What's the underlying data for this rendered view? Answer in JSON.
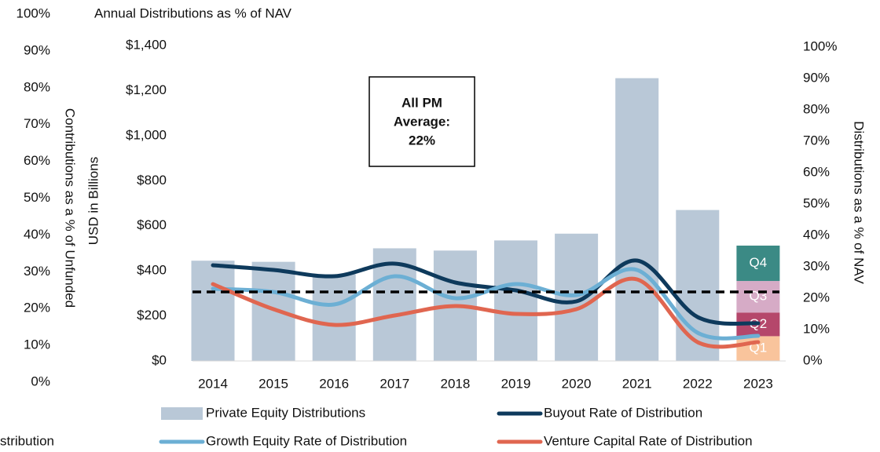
{
  "chart_data": {
    "type": "bar-line",
    "title": "Annual Distributions as % of NAV",
    "annotation": "stribution",
    "ylabel": "USD in Billions",
    "y2label": "Distributions as a % of NAV",
    "y3label": "Contributions as a % of Unfunded",
    "categories": [
      "2014",
      "2015",
      "2016",
      "2017",
      "2018",
      "2019",
      "2020",
      "2021",
      "2022",
      "2023"
    ],
    "ylim": [
      0,
      1400
    ],
    "yticks": [
      {
        "value": 0,
        "label": "$0"
      },
      {
        "value": 200,
        "label": "$200"
      },
      {
        "value": 400,
        "label": "$400"
      },
      {
        "value": 600,
        "label": "$600"
      },
      {
        "value": 800,
        "label": "$800"
      },
      {
        "value": 1000,
        "label": "$1,000"
      },
      {
        "value": 1200,
        "label": "$1,200"
      },
      {
        "value": 1400,
        "label": "$1,400"
      }
    ],
    "y2lim": [
      0,
      100
    ],
    "y2ticks": [
      {
        "value": 0,
        "label": "0%"
      },
      {
        "value": 10,
        "label": "10%"
      },
      {
        "value": 20,
        "label": "20%"
      },
      {
        "value": 30,
        "label": "30%"
      },
      {
        "value": 40,
        "label": "40%"
      },
      {
        "value": 50,
        "label": "50%"
      },
      {
        "value": 60,
        "label": "60%"
      },
      {
        "value": 70,
        "label": "70%"
      },
      {
        "value": 80,
        "label": "80%"
      },
      {
        "value": 90,
        "label": "90%"
      },
      {
        "value": 100,
        "label": "100%"
      }
    ],
    "y3lim": [
      0,
      100
    ],
    "y3ticks": [
      {
        "value": 0,
        "label": "0%"
      },
      {
        "value": 10,
        "label": "10%"
      },
      {
        "value": 20,
        "label": "20%"
      },
      {
        "value": 30,
        "label": "30%"
      },
      {
        "value": 40,
        "label": "40%"
      },
      {
        "value": 50,
        "label": "50%"
      },
      {
        "value": 60,
        "label": "60%"
      },
      {
        "value": 70,
        "label": "70%"
      },
      {
        "value": 80,
        "label": "80%"
      },
      {
        "value": 90,
        "label": "90%"
      },
      {
        "value": 100,
        "label": "100%"
      }
    ],
    "series": [
      {
        "name": "Private Equity Distributions",
        "type": "bar",
        "color": "#b9c8d7",
        "values": [
          445,
          440,
          385,
          500,
          490,
          535,
          565,
          1255,
          670,
          null
        ]
      },
      {
        "name": "Buyout Rate of Distribution",
        "type": "line",
        "axis": "y2",
        "color": "#0e3a5c",
        "values": [
          30.5,
          29,
          27,
          31,
          25,
          22.5,
          19,
          32,
          14,
          12
        ]
      },
      {
        "name": "Growth Equity Rate of Distribution",
        "type": "line",
        "axis": "y2",
        "color": "#6cafd4",
        "values": [
          23,
          22,
          18,
          27,
          20,
          24.5,
          21,
          29,
          9,
          8
        ]
      },
      {
        "name": "Venture Capital Rate of Distribution",
        "type": "line",
        "axis": "y2",
        "color": "#e06650",
        "values": [
          24.5,
          16.5,
          11.5,
          14.5,
          17.5,
          15,
          16.5,
          26,
          6,
          6
        ]
      }
    ],
    "quarters": [
      {
        "name": "Q1",
        "color": "#f9c49c",
        "value": 110
      },
      {
        "name": "Q2",
        "color": "#b5476b",
        "value": 105
      },
      {
        "name": "Q3",
        "color": "#d6abc6",
        "value": 140
      },
      {
        "name": "Q4",
        "color": "#3b8a85",
        "value": 157
      }
    ],
    "average": 22,
    "average_label": [
      "All PM",
      "Average:",
      "22%"
    ]
  }
}
